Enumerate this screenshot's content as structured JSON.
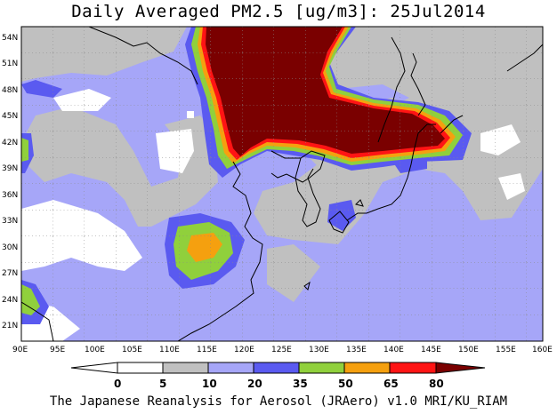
{
  "title": "Daily Averaged PM2.5 [ug/m3]: 25Jul2014",
  "credit": "The Japanese Reanalysis for Aerosol (JRAero) v1.0 MRI/KU_RIAM",
  "axes": {
    "lat_labels": [
      "54N",
      "51N",
      "48N",
      "45N",
      "42N",
      "39N",
      "36N",
      "33N",
      "30N",
      "27N",
      "24N",
      "21N"
    ],
    "lon_labels": [
      "90E",
      "95E",
      "100E",
      "105E",
      "110E",
      "115E",
      "120E",
      "125E",
      "130E",
      "135E",
      "140E",
      "145E",
      "150E",
      "155E",
      "160E"
    ]
  },
  "colorbar": {
    "tick_labels": [
      "0",
      "5",
      "10",
      "20",
      "35",
      "50",
      "65",
      "80"
    ],
    "colors": [
      "#ffffff",
      "#c0c0c0",
      "#a6a6f8",
      "#5a5af0",
      "#90d03c",
      "#f5a00f",
      "#ff1414",
      "#7a0000"
    ]
  }
}
